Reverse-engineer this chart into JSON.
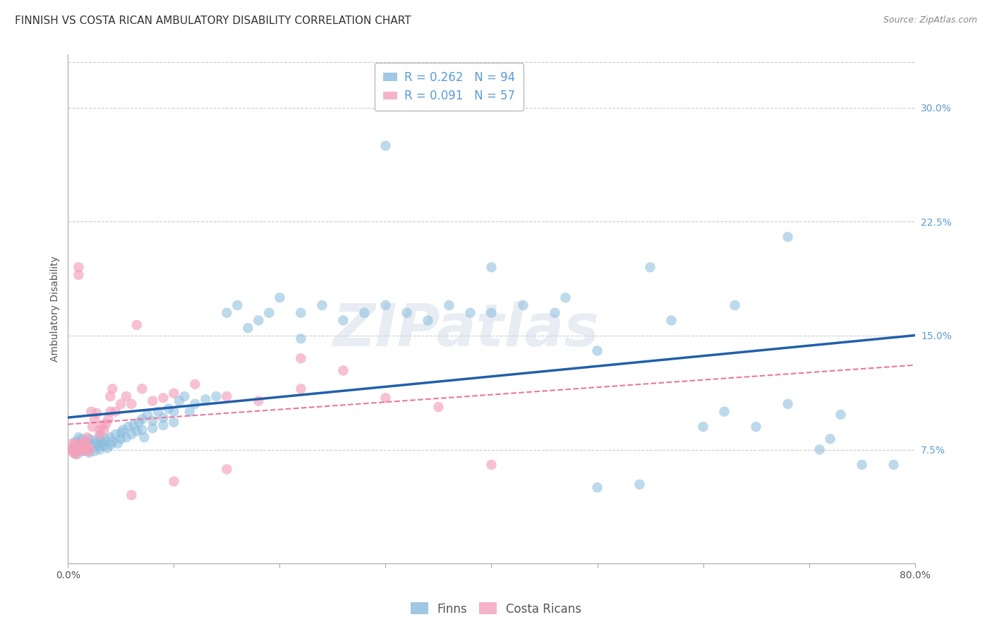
{
  "title": "FINNISH VS COSTA RICAN AMBULATORY DISABILITY CORRELATION CHART",
  "source": "Source: ZipAtlas.com",
  "ylabel": "Ambulatory Disability",
  "xlim": [
    0.0,
    0.8
  ],
  "ylim": [
    0.0,
    0.335
  ],
  "xticks": [
    0.0,
    0.1,
    0.2,
    0.3,
    0.4,
    0.5,
    0.6,
    0.7,
    0.8
  ],
  "xtick_labels": [
    "0.0%",
    "",
    "",
    "",
    "",
    "",
    "",
    "",
    "80.0%"
  ],
  "ytick_positions": [
    0.075,
    0.15,
    0.225,
    0.3
  ],
  "ytick_labels": [
    "7.5%",
    "15.0%",
    "22.5%",
    "30.0%"
  ],
  "finns_R": 0.262,
  "finns_N": 94,
  "costa_ricans_R": 0.091,
  "costa_ricans_N": 57,
  "finns_color": "#88bbdd",
  "costa_ricans_color": "#f4a0bb",
  "trend_finns_color": "#2060aa",
  "trend_costa_color": "#e878a0",
  "background_color": "#ffffff",
  "grid_color": "#cccccc",
  "watermark": "ZIPatlas",
  "finns_x": [
    0.005,
    0.007,
    0.009,
    0.01,
    0.01,
    0.012,
    0.013,
    0.015,
    0.015,
    0.017,
    0.018,
    0.02,
    0.02,
    0.022,
    0.025,
    0.025,
    0.027,
    0.03,
    0.03,
    0.03,
    0.032,
    0.034,
    0.035,
    0.037,
    0.04,
    0.04,
    0.042,
    0.045,
    0.047,
    0.05,
    0.05,
    0.052,
    0.055,
    0.057,
    0.06,
    0.062,
    0.065,
    0.067,
    0.07,
    0.07,
    0.072,
    0.075,
    0.08,
    0.08,
    0.085,
    0.09,
    0.09,
    0.095,
    0.1,
    0.1,
    0.105,
    0.11,
    0.115,
    0.12,
    0.13,
    0.14,
    0.15,
    0.16,
    0.17,
    0.18,
    0.19,
    0.2,
    0.22,
    0.24,
    0.26,
    0.28,
    0.3,
    0.32,
    0.34,
    0.36,
    0.38,
    0.4,
    0.43,
    0.46,
    0.5,
    0.54,
    0.57,
    0.6,
    0.63,
    0.65,
    0.68,
    0.71,
    0.73,
    0.75,
    0.4,
    0.3,
    0.55,
    0.62,
    0.47,
    0.22,
    0.68,
    0.72,
    0.78,
    0.5
  ],
  "finns_y": [
    0.075,
    0.08,
    0.072,
    0.083,
    0.076,
    0.079,
    0.082,
    0.074,
    0.078,
    0.08,
    0.076,
    0.082,
    0.073,
    0.078,
    0.081,
    0.074,
    0.079,
    0.083,
    0.075,
    0.077,
    0.08,
    0.078,
    0.082,
    0.076,
    0.083,
    0.078,
    0.08,
    0.085,
    0.079,
    0.086,
    0.082,
    0.088,
    0.083,
    0.09,
    0.085,
    0.091,
    0.087,
    0.093,
    0.088,
    0.095,
    0.083,
    0.098,
    0.089,
    0.094,
    0.1,
    0.091,
    0.096,
    0.102,
    0.093,
    0.1,
    0.107,
    0.11,
    0.1,
    0.105,
    0.108,
    0.11,
    0.165,
    0.17,
    0.155,
    0.16,
    0.165,
    0.175,
    0.165,
    0.17,
    0.16,
    0.165,
    0.17,
    0.165,
    0.16,
    0.17,
    0.165,
    0.165,
    0.17,
    0.165,
    0.05,
    0.052,
    0.16,
    0.09,
    0.17,
    0.09,
    0.215,
    0.075,
    0.098,
    0.065,
    0.195,
    0.275,
    0.195,
    0.1,
    0.175,
    0.148,
    0.105,
    0.082,
    0.065,
    0.14
  ],
  "costa_x": [
    0.003,
    0.004,
    0.005,
    0.005,
    0.006,
    0.007,
    0.007,
    0.008,
    0.009,
    0.01,
    0.01,
    0.01,
    0.011,
    0.012,
    0.013,
    0.014,
    0.015,
    0.015,
    0.016,
    0.017,
    0.018,
    0.02,
    0.02,
    0.022,
    0.023,
    0.025,
    0.027,
    0.03,
    0.03,
    0.032,
    0.034,
    0.036,
    0.038,
    0.04,
    0.04,
    0.042,
    0.045,
    0.05,
    0.055,
    0.06,
    0.065,
    0.07,
    0.08,
    0.09,
    0.1,
    0.12,
    0.15,
    0.18,
    0.22,
    0.26,
    0.3,
    0.35,
    0.4,
    0.22,
    0.15,
    0.1,
    0.06
  ],
  "costa_y": [
    0.075,
    0.079,
    0.073,
    0.076,
    0.078,
    0.072,
    0.076,
    0.074,
    0.075,
    0.195,
    0.19,
    0.076,
    0.079,
    0.078,
    0.075,
    0.079,
    0.074,
    0.078,
    0.08,
    0.076,
    0.083,
    0.076,
    0.074,
    0.1,
    0.09,
    0.095,
    0.099,
    0.085,
    0.088,
    0.091,
    0.088,
    0.092,
    0.095,
    0.11,
    0.1,
    0.115,
    0.1,
    0.105,
    0.11,
    0.105,
    0.157,
    0.115,
    0.107,
    0.109,
    0.112,
    0.118,
    0.11,
    0.107,
    0.115,
    0.127,
    0.109,
    0.103,
    0.065,
    0.135,
    0.062,
    0.054,
    0.045
  ],
  "title_fontsize": 11,
  "axis_label_fontsize": 10,
  "tick_fontsize": 10,
  "legend_fontsize": 12,
  "source_fontsize": 9
}
